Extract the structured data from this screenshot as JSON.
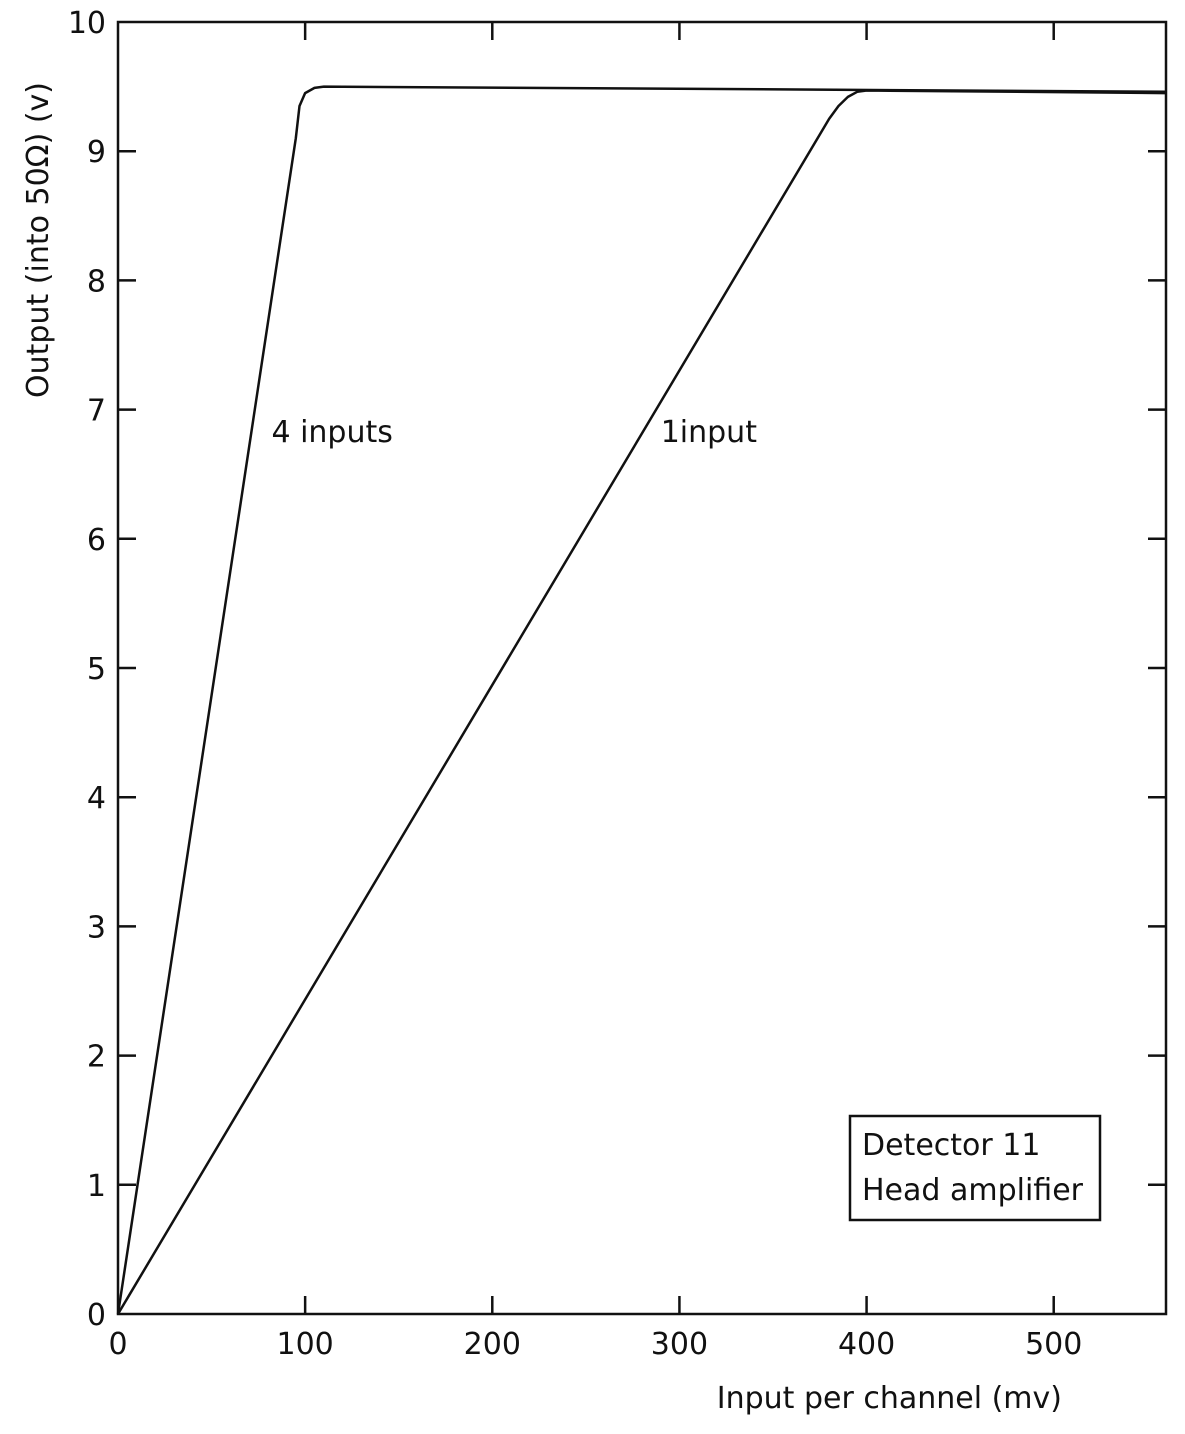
{
  "chart_data": {
    "type": "line",
    "title": "",
    "xlabel": "Input per channel (mv)",
    "ylabel": "Output (into 50Ω) (v)",
    "xlim": [
      0,
      560
    ],
    "ylim": [
      0,
      10
    ],
    "x_ticks": [
      0,
      100,
      200,
      300,
      400,
      500
    ],
    "y_ticks": [
      0,
      1,
      2,
      3,
      4,
      5,
      6,
      7,
      8,
      9,
      10
    ],
    "grid": false,
    "series": [
      {
        "name": "4 inputs",
        "x": [
          0,
          95,
          97,
          100,
          105,
          110,
          560
        ],
        "y": [
          0,
          9.1,
          9.35,
          9.45,
          9.49,
          9.5,
          9.46
        ]
      },
      {
        "name": "1input",
        "x": [
          0,
          380,
          385,
          390,
          395,
          400,
          560
        ],
        "y": [
          0,
          9.25,
          9.35,
          9.42,
          9.46,
          9.47,
          9.45
        ]
      }
    ],
    "annotation_box": [
      "Detector 11",
      "Head amplifier"
    ]
  }
}
